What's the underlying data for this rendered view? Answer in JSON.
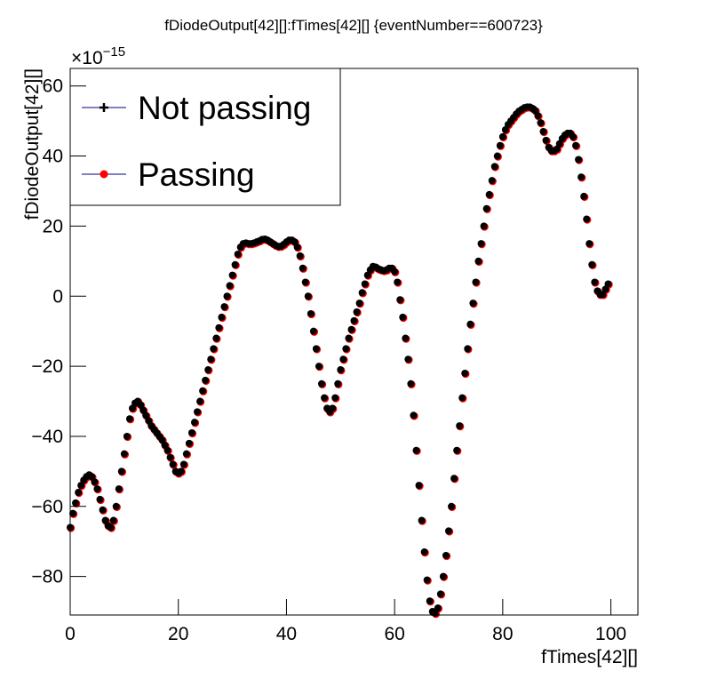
{
  "chart_data": {
    "type": "scatter",
    "title": "fDiodeOutput[42][]:fTimes[42][] {eventNumber==600723}",
    "x_label": "fTimes[42][]",
    "y_label": "fDiodeOutput[42][]",
    "y_exponent": {
      "base": "×10",
      "power": "−15"
    },
    "xlim": [
      0,
      105
    ],
    "ylim": [
      -91,
      65
    ],
    "xticks": [
      0,
      20,
      40,
      60,
      80,
      100
    ],
    "yticks": [
      {
        "value": -80,
        "label": "−80"
      },
      {
        "value": -60,
        "label": "−60"
      },
      {
        "value": -40,
        "label": "−40"
      },
      {
        "value": -20,
        "label": "−20"
      },
      0,
      20,
      40,
      60
    ],
    "legend": "top-left",
    "x": [
      0,
      0.5,
      1,
      1.5,
      2,
      2.5,
      3,
      3.5,
      4,
      4.5,
      5,
      5.5,
      6,
      6.5,
      7,
      7.5,
      8,
      8.5,
      9,
      9.5,
      10,
      10.5,
      11,
      11.5,
      12,
      12.5,
      13,
      13.5,
      14,
      14.5,
      15,
      15.5,
      16,
      16.5,
      17,
      17.5,
      18,
      18.5,
      19,
      19.5,
      20,
      20.5,
      21,
      21.5,
      22,
      22.5,
      23,
      23.5,
      24,
      24.5,
      25,
      25.5,
      26,
      26.5,
      27,
      27.5,
      28,
      28.5,
      29,
      29.5,
      30,
      30.5,
      31,
      31.5,
      32,
      32.5,
      33,
      33.5,
      34,
      34.5,
      35,
      35.5,
      36,
      36.5,
      37,
      37.5,
      38,
      38.5,
      39,
      39.5,
      40,
      40.5,
      41,
      41.5,
      42,
      42.5,
      43,
      43.5,
      44,
      44.5,
      45,
      45.5,
      46,
      46.5,
      47,
      47.5,
      48,
      48.5,
      49,
      49.5,
      50,
      50.5,
      51,
      51.5,
      52,
      52.5,
      53,
      53.5,
      54,
      54.5,
      55,
      55.5,
      56,
      56.5,
      57,
      57.5,
      58,
      58.5,
      59,
      59.5,
      60,
      60.5,
      61,
      61.5,
      62,
      62.5,
      63,
      63.5,
      64,
      64.5,
      65,
      65.5,
      66,
      66.5,
      67,
      67.5,
      68,
      68.5,
      69,
      69.5,
      70,
      70.5,
      71,
      71.5,
      72,
      72.5,
      73,
      73.5,
      74,
      74.5,
      75,
      75.5,
      76,
      76.5,
      77,
      77.5,
      78,
      78.5,
      79,
      79.5,
      80,
      80.5,
      81,
      81.5,
      82,
      82.5,
      83,
      83.5,
      84,
      84.5,
      85,
      85.5,
      86,
      86.5,
      87,
      87.5,
      88,
      88.5,
      89,
      89.5,
      90,
      90.5,
      91,
      91.5,
      92,
      92.5,
      93,
      93.5,
      94,
      94.5,
      95,
      95.5,
      96,
      96.5,
      97,
      97.5,
      98,
      98.5,
      99,
      99.5
    ],
    "series": [
      {
        "name": "Not passing",
        "color": "#000000",
        "values": [
          -66,
          -62,
          -59,
          -56,
          -54,
          -52.5,
          -51.5,
          -51,
          -51.5,
          -53,
          -55,
          -58,
          -61,
          -64,
          -65.5,
          -66,
          -64,
          -60,
          -55,
          -50,
          -45,
          -40,
          -35,
          -32,
          -30.5,
          -30,
          -31,
          -32.5,
          -34,
          -35.5,
          -37,
          -38,
          -39,
          -40,
          -41,
          -42.5,
          -44,
          -46,
          -48,
          -50,
          -50.5,
          -50,
          -48,
          -45,
          -42,
          -39,
          -36,
          -33,
          -30,
          -27,
          -24,
          -21,
          -18,
          -15,
          -12,
          -9,
          -6,
          -3,
          0,
          3,
          6,
          9,
          12,
          14,
          15,
          15.2,
          15,
          15,
          15.2,
          15.5,
          15.8,
          16.2,
          16.3,
          16,
          15.5,
          15,
          14.5,
          14.2,
          14.3,
          14.8,
          15.5,
          16,
          16,
          15.5,
          14,
          11.5,
          8,
          4,
          0,
          -5,
          -10,
          -15,
          -20,
          -25,
          -29,
          -32,
          -33,
          -32,
          -29,
          -25,
          -21,
          -18,
          -15,
          -12,
          -9.5,
          -7,
          -4.5,
          -2,
          1,
          3.5,
          6,
          7.5,
          8.5,
          8.3,
          7.8,
          7.5,
          7.3,
          7.5,
          8,
          8,
          7,
          4,
          -1,
          -6,
          -12,
          -18,
          -25,
          -34,
          -44,
          -54,
          -64,
          -73,
          -81,
          -87,
          -90,
          -90.5,
          -89,
          -85,
          -80,
          -74,
          -67,
          -60,
          -52,
          -44,
          -37,
          -29,
          -22,
          -15,
          -8,
          -2,
          4,
          10,
          15,
          20,
          25,
          29,
          33,
          37,
          40,
          43,
          45.5,
          47.5,
          49,
          50,
          51,
          52,
          52.8,
          53.3,
          53.8,
          54,
          54,
          53.6,
          53,
          51.5,
          49.5,
          47,
          44.5,
          42.5,
          41.5,
          41.5,
          42,
          43.5,
          45,
          46,
          46.5,
          46.5,
          45.5,
          43,
          39,
          34,
          28.5,
          22,
          15,
          9,
          4,
          1.5,
          0.5,
          0.5,
          2,
          3.5
        ]
      },
      {
        "name": "Passing",
        "color": "#ff0000",
        "values": [
          -66,
          -62,
          -59,
          -56,
          -54,
          -52.5,
          -51.5,
          -51,
          -51.5,
          -53,
          -55,
          -58,
          -61,
          -64,
          -65.5,
          -66,
          -64,
          -60,
          -55,
          -50,
          -45,
          -40,
          -35,
          -32,
          -30.5,
          -30,
          -31,
          -32.5,
          -34,
          -35.5,
          -37,
          -38,
          -39,
          -40,
          -41,
          -42.5,
          -44,
          -46,
          -48,
          -50,
          -50.5,
          -50,
          -48,
          -45,
          -42,
          -39,
          -36,
          -33,
          -30,
          -27,
          -24,
          -21,
          -18,
          -15,
          -12,
          -9,
          -6,
          -3,
          0,
          3,
          6,
          9,
          12,
          14,
          15,
          15.2,
          15,
          15,
          15.2,
          15.5,
          15.8,
          16.2,
          16.3,
          16,
          15.5,
          15,
          14.5,
          14.2,
          14.3,
          14.8,
          15.5,
          16,
          16,
          15.5,
          14,
          11.5,
          8,
          4,
          0,
          -5,
          -10,
          -15,
          -20,
          -25,
          -29,
          -32,
          -33,
          -32,
          -29,
          -25,
          -21,
          -18,
          -15,
          -12,
          -9.5,
          -7,
          -4.5,
          -2,
          1,
          3.5,
          6,
          7.5,
          8.5,
          8.3,
          7.8,
          7.5,
          7.3,
          7.5,
          8,
          8,
          7,
          4,
          -1,
          -6,
          -12,
          -18,
          -25,
          -34,
          -44,
          -54,
          -64,
          -73,
          -81,
          -87,
          -90,
          -90.5,
          -89,
          -85,
          -80,
          -74,
          -67,
          -60,
          -52,
          -44,
          -37,
          -29,
          -22,
          -15,
          -8,
          -2,
          4,
          10,
          15,
          20,
          25,
          29,
          33,
          37,
          40,
          43,
          45.5,
          47.5,
          49,
          50,
          51,
          52,
          52.8,
          53.3,
          53.8,
          54,
          54,
          53.6,
          53,
          51.5,
          49.5,
          47,
          44.5,
          42.5,
          41.5,
          41.5,
          42,
          43.5,
          45,
          46,
          46.5,
          46.5,
          45.5,
          43,
          39,
          34,
          28.5,
          22,
          15,
          9,
          4,
          1.5,
          0.5,
          0.5,
          2,
          3.5
        ]
      }
    ]
  }
}
